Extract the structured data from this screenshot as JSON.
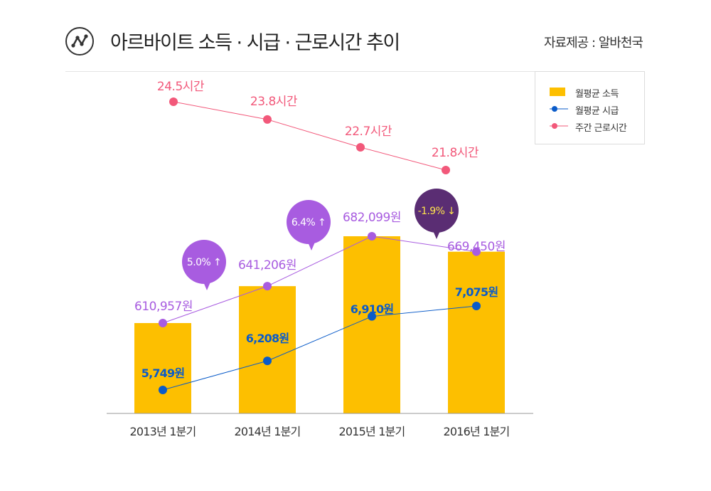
{
  "header": {
    "title": "아르바이트 소득 · 시급 · 근로시간 추이",
    "source": "자료제공 : 알바천국",
    "icon": "trend-line-icon"
  },
  "colors": {
    "bar": "#FDBF00",
    "wage": "#0A5BC9",
    "hours": "#F2587A",
    "income_line": "#A85CE0",
    "bubble_up": "#A85CE0",
    "bubble_down": "#5A2D73",
    "bubble_down_text": "#FFE44D"
  },
  "legend": [
    {
      "label": "월평균 소득",
      "kind": "bar"
    },
    {
      "label": "월평균 시급",
      "kind": "wage"
    },
    {
      "label": "주간 근로시간",
      "kind": "hours"
    }
  ],
  "chart_data": {
    "type": "bar",
    "categories": [
      "2013년 1분기",
      "2014년 1분기",
      "2015년 1분기",
      "2016년 1분기"
    ],
    "series": [
      {
        "name": "월평균 소득",
        "type": "bar",
        "values": [
          610957,
          641206,
          682099,
          669450
        ],
        "labels": [
          "610,957원",
          "641,206원",
          "682,099원",
          "669,450원"
        ]
      },
      {
        "name": "월평균 시급",
        "type": "line",
        "values": [
          5749,
          6208,
          6910,
          7075
        ],
        "labels": [
          "5,749원",
          "6,208원",
          "6,910원",
          "7,075원"
        ]
      },
      {
        "name": "주간 근로시간",
        "type": "line",
        "values": [
          24.5,
          23.8,
          22.7,
          21.8
        ],
        "labels": [
          "24.5시간",
          "23.8시간",
          "22.7시간",
          "21.8시간"
        ]
      }
    ],
    "annotations": [
      {
        "between": [
          0,
          1
        ],
        "text": "5.0% ↑",
        "direction": "up"
      },
      {
        "between": [
          1,
          2
        ],
        "text": "6.4% ↑",
        "direction": "up"
      },
      {
        "between": [
          2,
          3
        ],
        "text": "-1.9% ↓",
        "direction": "down"
      }
    ],
    "grid": false,
    "legend_position": "top-right"
  }
}
